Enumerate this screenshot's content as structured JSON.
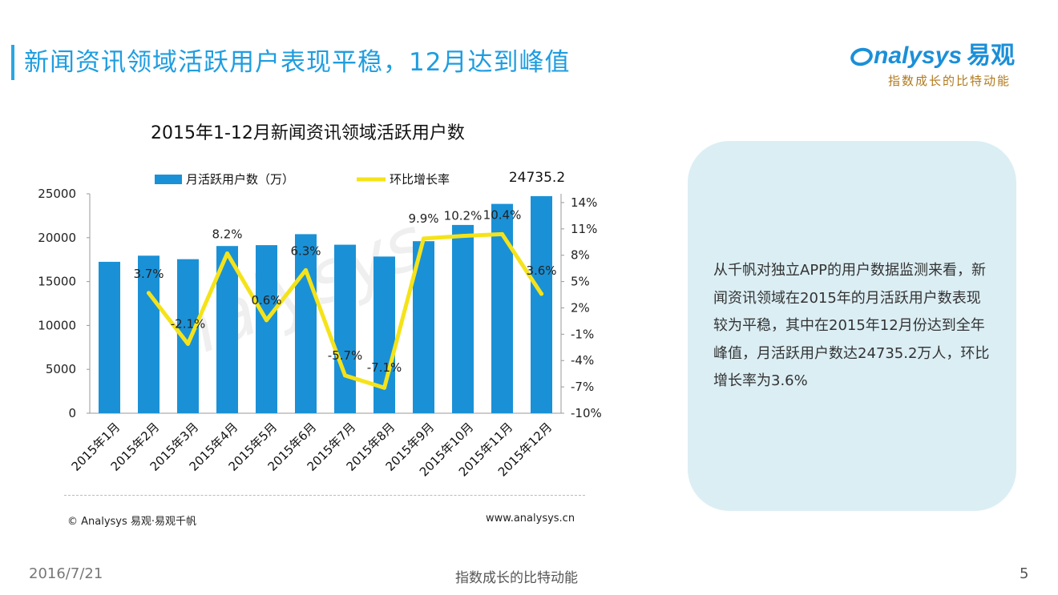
{
  "slide": {
    "title": "新闻资讯领域活跃用户表现平稳，12月达到峰值",
    "logo_text": "nalysys",
    "logo_cn": "易观",
    "logo_slogan": "指数成长的比特动能",
    "source": "© Analysys 易观·易观千帆",
    "website": "www.analysys.cn",
    "callout_text": "从千帆对独立APP的用户数据监测来看，新闻资讯领域在2015年的月活跃用户数表现较为平稳，其中在2015年12月份达到全年峰值，月活跃用户数达24735.2万人，环比增长率为3.6%",
    "footer_date": "2016/7/21",
    "footer_slogan": "指数成长的比特动能",
    "page_number": "5"
  },
  "colors": {
    "bar": "#1a91d6",
    "line": "#f5e31a",
    "title": "#1f9de0",
    "callout_bg": "#dbeef4"
  },
  "chart_data": {
    "type": "bar",
    "title": "2015年1-12月新闻资讯领域活跃用户数",
    "categories": [
      "2015年1月",
      "2015年2月",
      "2015年3月",
      "2015年4月",
      "2015年5月",
      "2015年6月",
      "2015年7月",
      "2015年8月",
      "2015年9月",
      "2015年10月",
      "2015年11月",
      "2015年12月"
    ],
    "series": [
      {
        "name": "月活跃用户数（万）",
        "type": "bar",
        "axis": "left",
        "values": [
          17250,
          17950,
          17550,
          19050,
          19150,
          20400,
          19200,
          17850,
          19600,
          21450,
          23850,
          24735.2
        ]
      },
      {
        "name": "环比增长率",
        "type": "line",
        "axis": "right",
        "values": [
          null,
          3.7,
          -2.1,
          8.2,
          0.6,
          6.3,
          -5.7,
          -7.1,
          9.9,
          10.2,
          10.4,
          3.6
        ],
        "labels": [
          "",
          "3.7%",
          "-2.1%",
          "8.2%",
          "0.6%",
          "6.3%",
          "-5.7%",
          "-7.1%",
          "9.9%",
          "10.2%",
          "10.4%",
          "3.6%"
        ]
      }
    ],
    "bar_annotation": "24735.2",
    "ylim": [
      0,
      25000
    ],
    "yticks": [
      "0",
      "5000",
      "10000",
      "15000",
      "20000",
      "25000"
    ],
    "y2lim": [
      -10,
      15
    ],
    "y2ticks": [
      "-10%",
      "-7%",
      "-4%",
      "-1%",
      "2%",
      "5%",
      "8%",
      "11%",
      "14%"
    ],
    "legend_position": "top"
  }
}
